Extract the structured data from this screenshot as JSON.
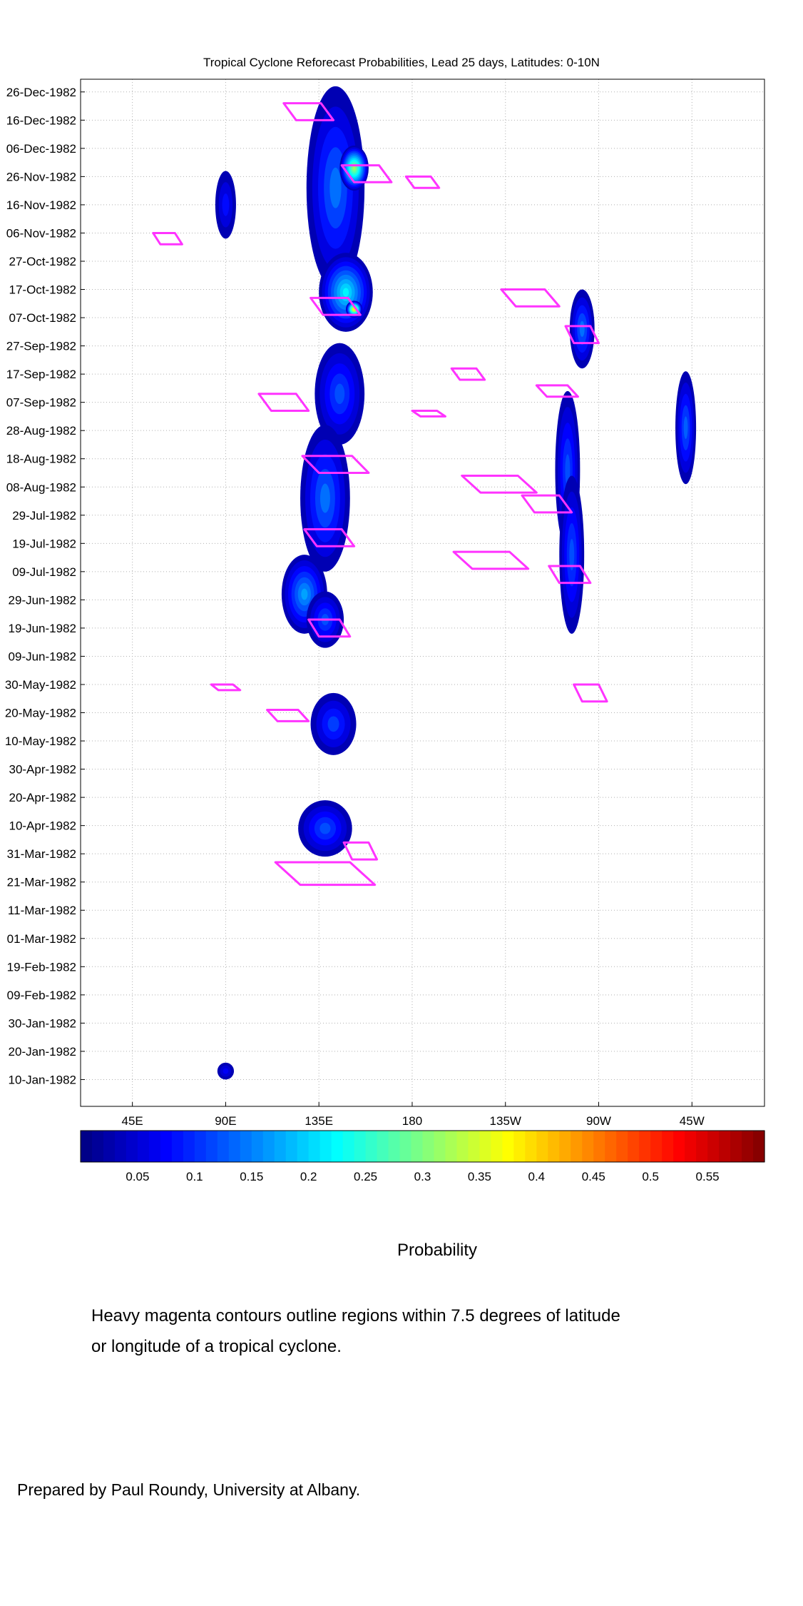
{
  "chart_data": {
    "type": "heatmap",
    "title": "Tropical Cyclone Reforecast Probabilities, Lead 25 days, Latitudes: 0-10N",
    "xlabel": "",
    "ylabel": "",
    "x_ticks": [
      "45E",
      "90E",
      "135E",
      "180",
      "135W",
      "90W",
      "45W"
    ],
    "x_tick_values": [
      45,
      90,
      135,
      180,
      225,
      270,
      315
    ],
    "xlim": [
      20,
      350
    ],
    "y_ticks": [
      "26-Dec-1982",
      "16-Dec-1982",
      "06-Dec-1982",
      "26-Nov-1982",
      "16-Nov-1982",
      "06-Nov-1982",
      "27-Oct-1982",
      "17-Oct-1982",
      "07-Oct-1982",
      "27-Sep-1982",
      "17-Sep-1982",
      "07-Sep-1982",
      "28-Aug-1982",
      "18-Aug-1982",
      "08-Aug-1982",
      "29-Jul-1982",
      "19-Jul-1982",
      "09-Jul-1982",
      "29-Jun-1982",
      "19-Jun-1982",
      "09-Jun-1982",
      "30-May-1982",
      "20-May-1982",
      "10-May-1982",
      "30-Apr-1982",
      "20-Apr-1982",
      "10-Apr-1982",
      "31-Mar-1982",
      "21-Mar-1982",
      "11-Mar-1982",
      "01-Mar-1982",
      "19-Feb-1982",
      "09-Feb-1982",
      "30-Jan-1982",
      "20-Jan-1982",
      "10-Jan-1982"
    ],
    "y_tick_values": [
      359,
      349,
      339,
      329,
      319,
      309,
      299,
      289,
      279,
      269,
      259,
      249,
      239,
      229,
      219,
      209,
      199,
      189,
      179,
      169,
      159,
      149,
      139,
      129,
      119,
      109,
      99,
      89,
      79,
      69,
      59,
      49,
      39,
      29,
      19,
      9
    ],
    "ylim": [
      -0.5,
      363.5
    ],
    "colorbar": {
      "label": "Probability",
      "ticks": [
        "0.05",
        "0.1",
        "0.15",
        "0.2",
        "0.25",
        "0.3",
        "0.35",
        "0.4",
        "0.45",
        "0.5",
        "0.55"
      ],
      "tick_values": [
        0.05,
        0.1,
        0.15,
        0.2,
        0.25,
        0.3,
        0.35,
        0.4,
        0.45,
        0.5,
        0.55
      ],
      "range": [
        0.0,
        0.6
      ],
      "colormap": "jet"
    },
    "probability_blobs": [
      {
        "lon": 143,
        "day": 325,
        "dlon": 14,
        "dday": 36,
        "peak": 0.14
      },
      {
        "lon": 152,
        "day": 332,
        "dlon": 7,
        "dday": 8,
        "peak": 0.32
      },
      {
        "lon": 148,
        "day": 288,
        "dlon": 13,
        "dday": 14,
        "peak": 0.22
      },
      {
        "lon": 152,
        "day": 282,
        "dlon": 4,
        "dday": 3,
        "peak": 0.4
      },
      {
        "lon": 145,
        "day": 252,
        "dlon": 12,
        "dday": 18,
        "peak": 0.12
      },
      {
        "lon": 138,
        "day": 215,
        "dlon": 12,
        "dday": 26,
        "peak": 0.14
      },
      {
        "lon": 128,
        "day": 181,
        "dlon": 11,
        "dday": 14,
        "peak": 0.17
      },
      {
        "lon": 138,
        "day": 172,
        "dlon": 9,
        "dday": 10,
        "peak": 0.12
      },
      {
        "lon": 142,
        "day": 135,
        "dlon": 11,
        "dday": 11,
        "peak": 0.11
      },
      {
        "lon": 138,
        "day": 98,
        "dlon": 13,
        "dday": 10,
        "peak": 0.12
      },
      {
        "lon": 255,
        "day": 225,
        "dlon": 6,
        "dday": 28,
        "peak": 0.12
      },
      {
        "lon": 262,
        "day": 275,
        "dlon": 6,
        "dday": 14,
        "peak": 0.14
      },
      {
        "lon": 257,
        "day": 195,
        "dlon": 6,
        "dday": 28,
        "peak": 0.12
      },
      {
        "lon": 312,
        "day": 240,
        "dlon": 5,
        "dday": 20,
        "peak": 0.13
      },
      {
        "lon": 90,
        "day": 319,
        "dlon": 5,
        "dday": 12,
        "peak": 0.08
      },
      {
        "lon": 90,
        "day": 12,
        "dlon": 4,
        "dday": 3,
        "peak": 0.07
      }
    ],
    "cyclone_contours": [
      {
        "lon": 130,
        "day": 352,
        "dlon": 12,
        "dday": 3
      },
      {
        "lon": 158,
        "day": 330,
        "dlon": 12,
        "dday": 3
      },
      {
        "lon": 185,
        "day": 327,
        "dlon": 8,
        "dday": 2
      },
      {
        "lon": 62,
        "day": 307,
        "dlon": 7,
        "dday": 2
      },
      {
        "lon": 237,
        "day": 286,
        "dlon": 14,
        "dday": 3
      },
      {
        "lon": 143,
        "day": 283,
        "dlon": 12,
        "dday": 3
      },
      {
        "lon": 262,
        "day": 273,
        "dlon": 8,
        "dday": 3
      },
      {
        "lon": 207,
        "day": 259,
        "dlon": 8,
        "dday": 2
      },
      {
        "lon": 250,
        "day": 253,
        "dlon": 10,
        "dday": 2
      },
      {
        "lon": 118,
        "day": 249,
        "dlon": 12,
        "dday": 3
      },
      {
        "lon": 188,
        "day": 245,
        "dlon": 8,
        "dday": 1
      },
      {
        "lon": 143,
        "day": 227,
        "dlon": 16,
        "dday": 3
      },
      {
        "lon": 222,
        "day": 220,
        "dlon": 18,
        "dday": 3
      },
      {
        "lon": 245,
        "day": 213,
        "dlon": 12,
        "dday": 3
      },
      {
        "lon": 140,
        "day": 201,
        "dlon": 12,
        "dday": 3
      },
      {
        "lon": 218,
        "day": 193,
        "dlon": 18,
        "dday": 3
      },
      {
        "lon": 256,
        "day": 188,
        "dlon": 10,
        "dday": 3
      },
      {
        "lon": 140,
        "day": 169,
        "dlon": 10,
        "dday": 3
      },
      {
        "lon": 90,
        "day": 148,
        "dlon": 7,
        "dday": 1
      },
      {
        "lon": 266,
        "day": 146,
        "dlon": 8,
        "dday": 3
      },
      {
        "lon": 120,
        "day": 138,
        "dlon": 10,
        "dday": 2
      },
      {
        "lon": 138,
        "day": 82,
        "dlon": 24,
        "dday": 4
      },
      {
        "lon": 155,
        "day": 90,
        "dlon": 8,
        "dday": 3
      }
    ]
  },
  "caption": {
    "colorbar_label": "Probability",
    "note_line1": "Heavy magenta contours outline regions within 7.5 degrees of latitude",
    "note_line2": "or longitude of a tropical cyclone.",
    "credit": "Prepared by Paul Roundy, University at Albany."
  },
  "colors": {
    "contour": "#ff33ff",
    "background_low": "#00008f",
    "grid": "#b0b0b0"
  }
}
